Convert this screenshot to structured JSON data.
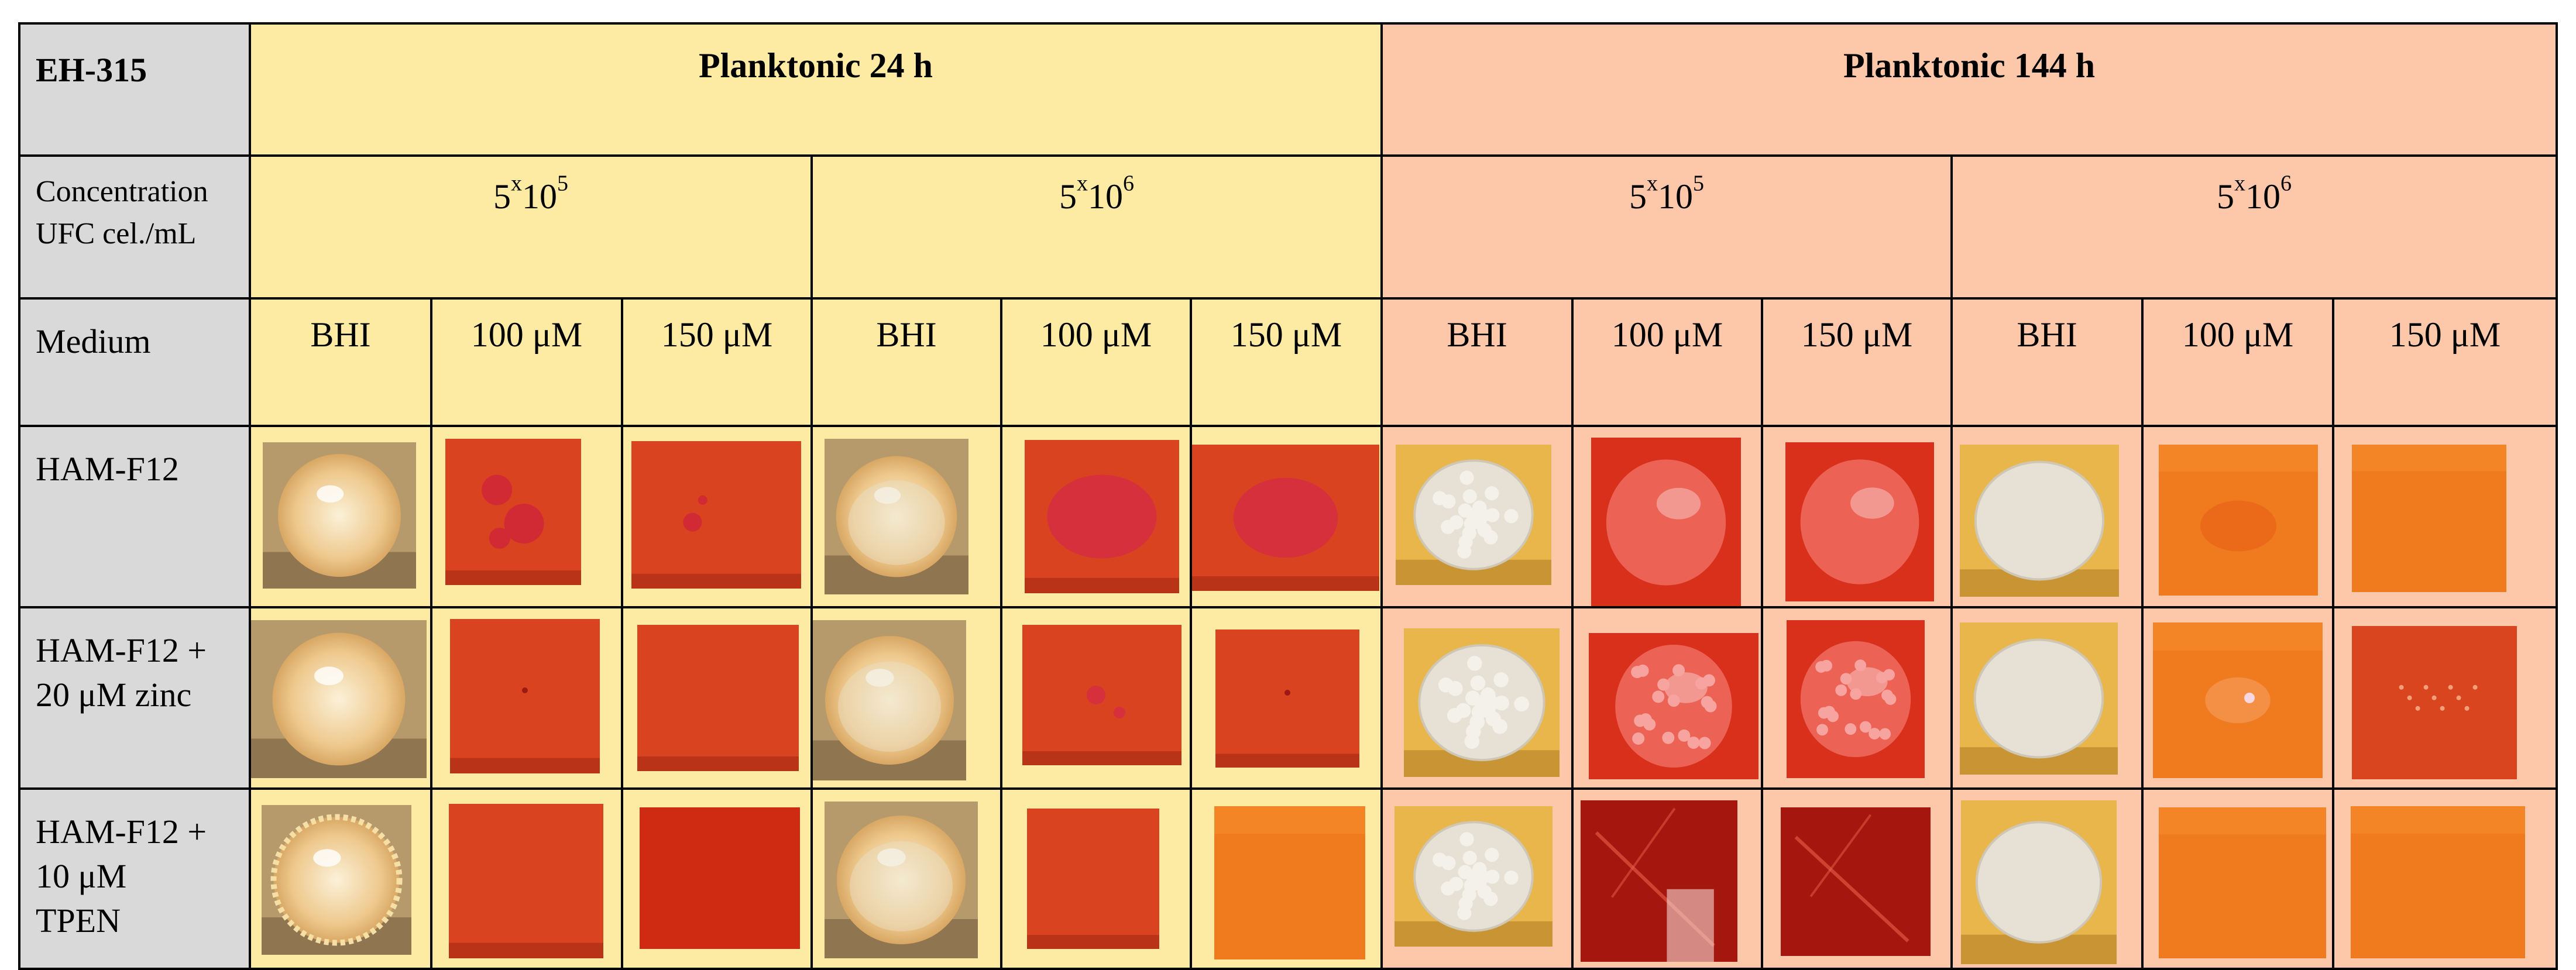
{
  "strain": "EH-315",
  "groups": [
    {
      "title": "Planktonic 24 h",
      "tone": "#fdeaa3"
    },
    {
      "title": "Planktonic 144 h",
      "tone": "#fdc8a9"
    }
  ],
  "concentration": {
    "label_line1": "Concentration",
    "label_line2": "UFC cel./mL",
    "values": [
      {
        "base": "5",
        "x": "x",
        "ten": "10",
        "exp": "5"
      },
      {
        "base": "5",
        "x": "x",
        "ten": "10",
        "exp": "6"
      },
      {
        "base": "5",
        "x": "x",
        "ten": "10",
        "exp": "5"
      },
      {
        "base": "5",
        "x": "x",
        "ten": "10",
        "exp": "6"
      }
    ]
  },
  "medium": {
    "label": "Medium",
    "columns": [
      "BHI",
      "100 μM",
      "150 μM",
      "BHI",
      "100 μM",
      "150 μM",
      "BHI",
      "100 μM",
      "150 μM",
      "BHI",
      "100 μM",
      "150 μM"
    ]
  },
  "rows": [
    {
      "label_lines": [
        "HAM-F12"
      ]
    },
    {
      "label_lines": [
        "HAM-F12 +",
        "20 μM zinc"
      ]
    },
    {
      "label_lines": [
        "HAM-F12 +",
        "10 μM",
        "TPEN"
      ]
    }
  ],
  "colors": {
    "header_gray": "#d9d9d9",
    "yellow_group": "#fdeaa3",
    "salmon_group": "#fdc8a9",
    "agar_red": "#d9431f",
    "agar_orange": "#f07a1e",
    "colony_cream": "#f2e3c2",
    "colony_white": "#e9e6dd"
  }
}
